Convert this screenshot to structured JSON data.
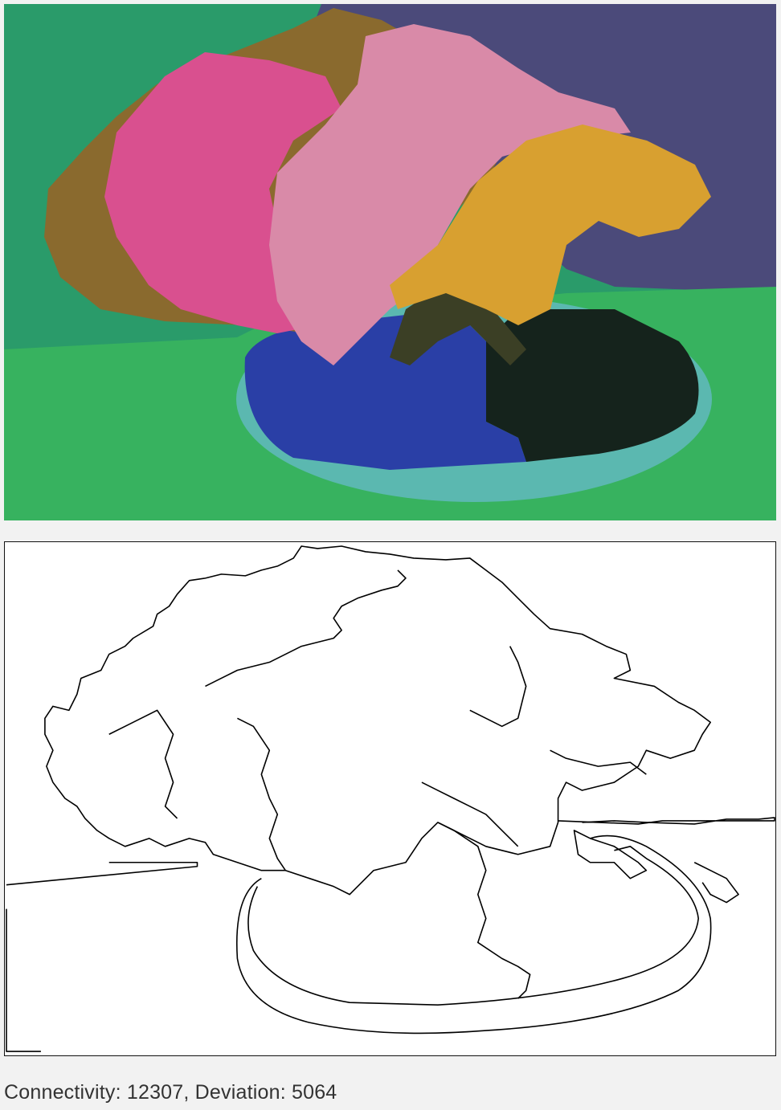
{
  "segmentation_view": {
    "regions": [
      {
        "name": "wall-left",
        "color": "#2a9b6a"
      },
      {
        "name": "wall-right",
        "color": "#4b4a7a"
      },
      {
        "name": "table",
        "color": "#37b25f"
      },
      {
        "name": "pot-rim",
        "color": "#5bb8b0"
      },
      {
        "name": "soil-left",
        "color": "#2a3fa6"
      },
      {
        "name": "soil-right",
        "color": "#15231c"
      },
      {
        "name": "foliage-brown",
        "color": "#8a6a2e"
      },
      {
        "name": "flowers-magenta",
        "color": "#d9508f"
      },
      {
        "name": "flowers-pink",
        "color": "#d98aa8"
      },
      {
        "name": "flowers-yellow",
        "color": "#d8a030"
      },
      {
        "name": "trunk",
        "color": "#3b3f25"
      }
    ]
  },
  "contour_view": {
    "stroke_color": "#000000",
    "background_color": "#ffffff"
  },
  "status": {
    "text": "Connectivity: 12307, Deviation: 5064"
  }
}
